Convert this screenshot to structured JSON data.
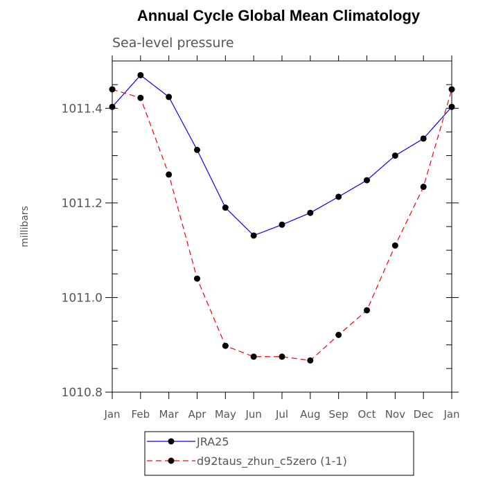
{
  "chart_data": {
    "type": "line",
    "title": "Annual Cycle Global Mean Climatology",
    "subtitle": "Sea-level pressure",
    "ylabel": "millibars",
    "xlabel": "",
    "categories": [
      "Jan",
      "Feb",
      "Mar",
      "Apr",
      "May",
      "Jun",
      "Jul",
      "Aug",
      "Sep",
      "Oct",
      "Nov",
      "Dec",
      "Jan"
    ],
    "ylim": [
      1010.8,
      1011.5
    ],
    "yticks": [
      1010.8,
      1011.0,
      1011.2,
      1011.4
    ],
    "ytick_labels": [
      "1010.8",
      "1011.0",
      "1011.2",
      "1011.4"
    ],
    "series": [
      {
        "name": "JRA25",
        "color": "#0000ff",
        "dash": "solid",
        "values": [
          1011.403,
          1011.47,
          1011.424,
          1011.312,
          1011.19,
          1011.131,
          1011.154,
          1011.179,
          1011.213,
          1011.248,
          1011.3,
          1011.336,
          1011.403
        ]
      },
      {
        "name": "d92taus_zhun_c5zero (1-1)",
        "color": "#ff0000",
        "dash": "dashed",
        "values": [
          1011.44,
          1011.422,
          1011.26,
          1011.04,
          1010.898,
          1010.875,
          1010.875,
          1010.867,
          1010.921,
          1010.973,
          1011.11,
          1011.234,
          1011.44
        ]
      }
    ],
    "grid": false,
    "legend_position": "bottom"
  }
}
